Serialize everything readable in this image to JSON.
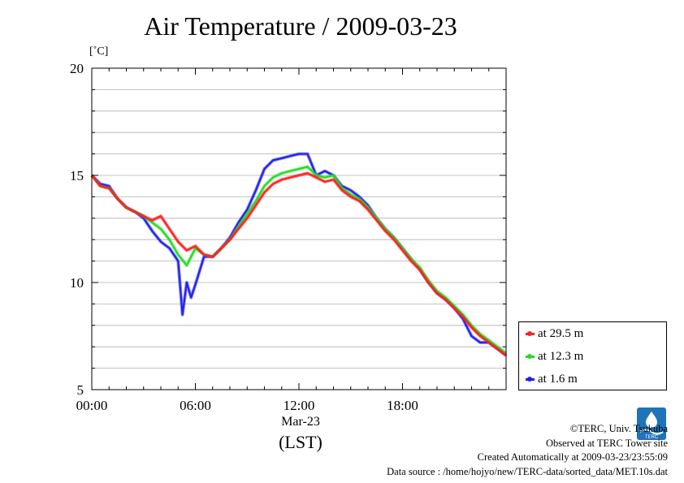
{
  "chart_data": {
    "type": "line",
    "title": "Air Temperature / 2009-03-23",
    "unit_label": "[˚C]",
    "xlabel": "(LST)",
    "x_date_label": "Mar-23",
    "x_tick_labels": [
      "00:00",
      "06:00",
      "12:00",
      "18:00"
    ],
    "x_ticks_hours": [
      0,
      6,
      12,
      18
    ],
    "xlim": [
      0,
      24
    ],
    "ylim": [
      5,
      20
    ],
    "y_tick_labels": [
      "5",
      "10",
      "15",
      "20"
    ],
    "y_ticks": [
      5,
      10,
      15,
      20
    ],
    "grid": true,
    "legend_position": "bottom-right outside",
    "series": [
      {
        "name": "at 29.5 m",
        "color": "#ff2020",
        "x": [
          0,
          0.5,
          1,
          1.5,
          2,
          2.5,
          3,
          3.5,
          4,
          4.5,
          5,
          5.5,
          6,
          6.5,
          7,
          7.5,
          8,
          8.5,
          9,
          9.5,
          10,
          10.5,
          11,
          11.5,
          12,
          12.5,
          13,
          13.5,
          14,
          14.5,
          15,
          15.5,
          16,
          16.5,
          17,
          17.5,
          18,
          18.5,
          19,
          19.5,
          20,
          20.5,
          21,
          21.5,
          22,
          22.5,
          23,
          23.5,
          24
        ],
        "y": [
          15.0,
          14.5,
          14.4,
          13.9,
          13.5,
          13.3,
          13.1,
          12.9,
          13.1,
          12.5,
          11.9,
          11.5,
          11.7,
          11.3,
          11.2,
          11.6,
          12.0,
          12.5,
          13.0,
          13.6,
          14.2,
          14.6,
          14.8,
          14.9,
          15.0,
          15.1,
          14.9,
          14.7,
          14.8,
          14.3,
          14.0,
          13.8,
          13.4,
          12.9,
          12.4,
          12.0,
          11.5,
          11.0,
          10.6,
          10.0,
          9.5,
          9.2,
          8.8,
          8.4,
          7.9,
          7.5,
          7.2,
          6.9,
          6.6
        ]
      },
      {
        "name": "at 12.3 m",
        "color": "#20e020",
        "x": [
          0,
          0.5,
          1,
          1.5,
          2,
          2.5,
          3,
          3.5,
          4,
          4.5,
          5,
          5.5,
          6,
          6.5,
          7,
          7.5,
          8,
          8.5,
          9,
          9.5,
          10,
          10.5,
          11,
          11.5,
          12,
          12.5,
          13,
          13.5,
          14,
          14.5,
          15,
          15.5,
          16,
          16.5,
          17,
          17.5,
          18,
          18.5,
          19,
          19.5,
          20,
          20.5,
          21,
          21.5,
          22,
          22.5,
          23,
          23.5,
          24
        ],
        "y": [
          15.0,
          14.5,
          14.4,
          13.9,
          13.5,
          13.3,
          13.1,
          12.8,
          12.5,
          12.0,
          11.3,
          10.8,
          11.6,
          11.3,
          11.2,
          11.6,
          12.0,
          12.6,
          13.2,
          13.8,
          14.5,
          14.9,
          15.1,
          15.2,
          15.3,
          15.4,
          15.0,
          14.9,
          15.0,
          14.4,
          14.1,
          13.9,
          13.5,
          13.0,
          12.5,
          12.1,
          11.6,
          11.1,
          10.7,
          10.1,
          9.6,
          9.3,
          8.9,
          8.5,
          8.0,
          7.6,
          7.3,
          7.0,
          6.7
        ]
      },
      {
        "name": "at 1.6 m",
        "color": "#2020f0",
        "x": [
          0,
          0.5,
          1,
          1.5,
          2,
          2.5,
          3,
          3.5,
          4,
          4.5,
          5,
          5.25,
          5.5,
          5.75,
          6,
          6.5,
          7,
          7.5,
          8,
          8.5,
          9,
          9.5,
          10,
          10.5,
          11,
          11.5,
          12,
          12.5,
          13,
          13.5,
          14,
          14.5,
          15,
          15.5,
          16,
          16.5,
          17,
          17.5,
          18,
          18.5,
          19,
          19.5,
          20,
          20.5,
          21,
          21.5,
          22,
          22.5,
          23,
          23.5,
          24
        ],
        "y": [
          15.0,
          14.6,
          14.5,
          13.9,
          13.5,
          13.3,
          13.0,
          12.4,
          11.9,
          11.6,
          11.0,
          8.5,
          10.0,
          9.3,
          9.9,
          11.2,
          11.2,
          11.6,
          12.1,
          12.8,
          13.4,
          14.3,
          15.3,
          15.7,
          15.8,
          15.9,
          16.0,
          16.0,
          15.0,
          15.2,
          15.0,
          14.5,
          14.3,
          14.0,
          13.6,
          13.0,
          12.5,
          12.1,
          11.6,
          11.1,
          10.6,
          10.0,
          9.5,
          9.2,
          8.8,
          8.3,
          7.5,
          7.2,
          7.2,
          6.9,
          6.6
        ]
      }
    ]
  },
  "credits": {
    "copyright": "©TERC, Univ. Tsukuba",
    "observed": "Observed at TERC Tower site",
    "created": "Created Automatically at 2009-03-23/23:55:09",
    "source": "Data source : /home/hojyo/new/TERC-data/sorted_data/MET.10s.dat"
  },
  "logo": {
    "text": "TERC",
    "color": "#1e73b9"
  }
}
